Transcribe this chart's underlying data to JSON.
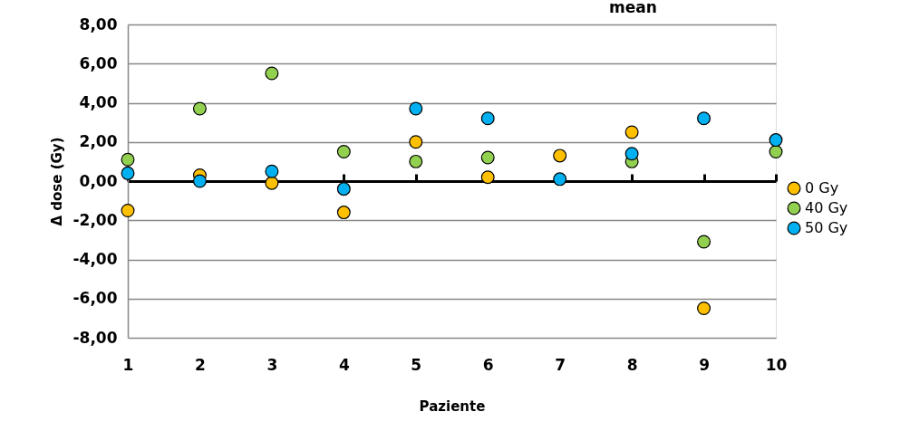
{
  "chart_data": {
    "type": "scatter",
    "title": "mean",
    "xlabel": "Paziente",
    "ylabel": "Δ dose (Gy)",
    "categories": [
      "1",
      "2",
      "3",
      "4",
      "5",
      "6",
      "7",
      "8",
      "9",
      "10"
    ],
    "series": [
      {
        "name": "0 Gy",
        "color": "#ffc000",
        "values": [
          -1.5,
          0.3,
          -0.1,
          -1.6,
          2.0,
          0.2,
          1.3,
          2.5,
          -6.5,
          null
        ]
      },
      {
        "name": "40 Gy",
        "color": "#92d050",
        "values": [
          1.1,
          3.7,
          5.5,
          1.5,
          1.0,
          1.2,
          null,
          1.0,
          -3.1,
          1.5
        ]
      },
      {
        "name": "50 Gy",
        "color": "#00b0f0",
        "values": [
          0.4,
          0.0,
          0.5,
          -0.4,
          3.7,
          3.2,
          0.1,
          1.4,
          3.2,
          2.1
        ]
      }
    ],
    "ylim": [
      -8,
      8
    ],
    "yticks": [
      {
        "value": -8,
        "label": "-8,00"
      },
      {
        "value": -6,
        "label": "-6,00"
      },
      {
        "value": -4,
        "label": "-4,00"
      },
      {
        "value": -2,
        "label": "-2,00"
      },
      {
        "value": 0,
        "label": "0,00"
      },
      {
        "value": 2,
        "label": "2,00"
      },
      {
        "value": 4,
        "label": "4,00"
      },
      {
        "value": 6,
        "label": "6,00"
      },
      {
        "value": 8,
        "label": "8,00"
      }
    ],
    "grid": "y",
    "legend": "right",
    "marker": "circle"
  }
}
